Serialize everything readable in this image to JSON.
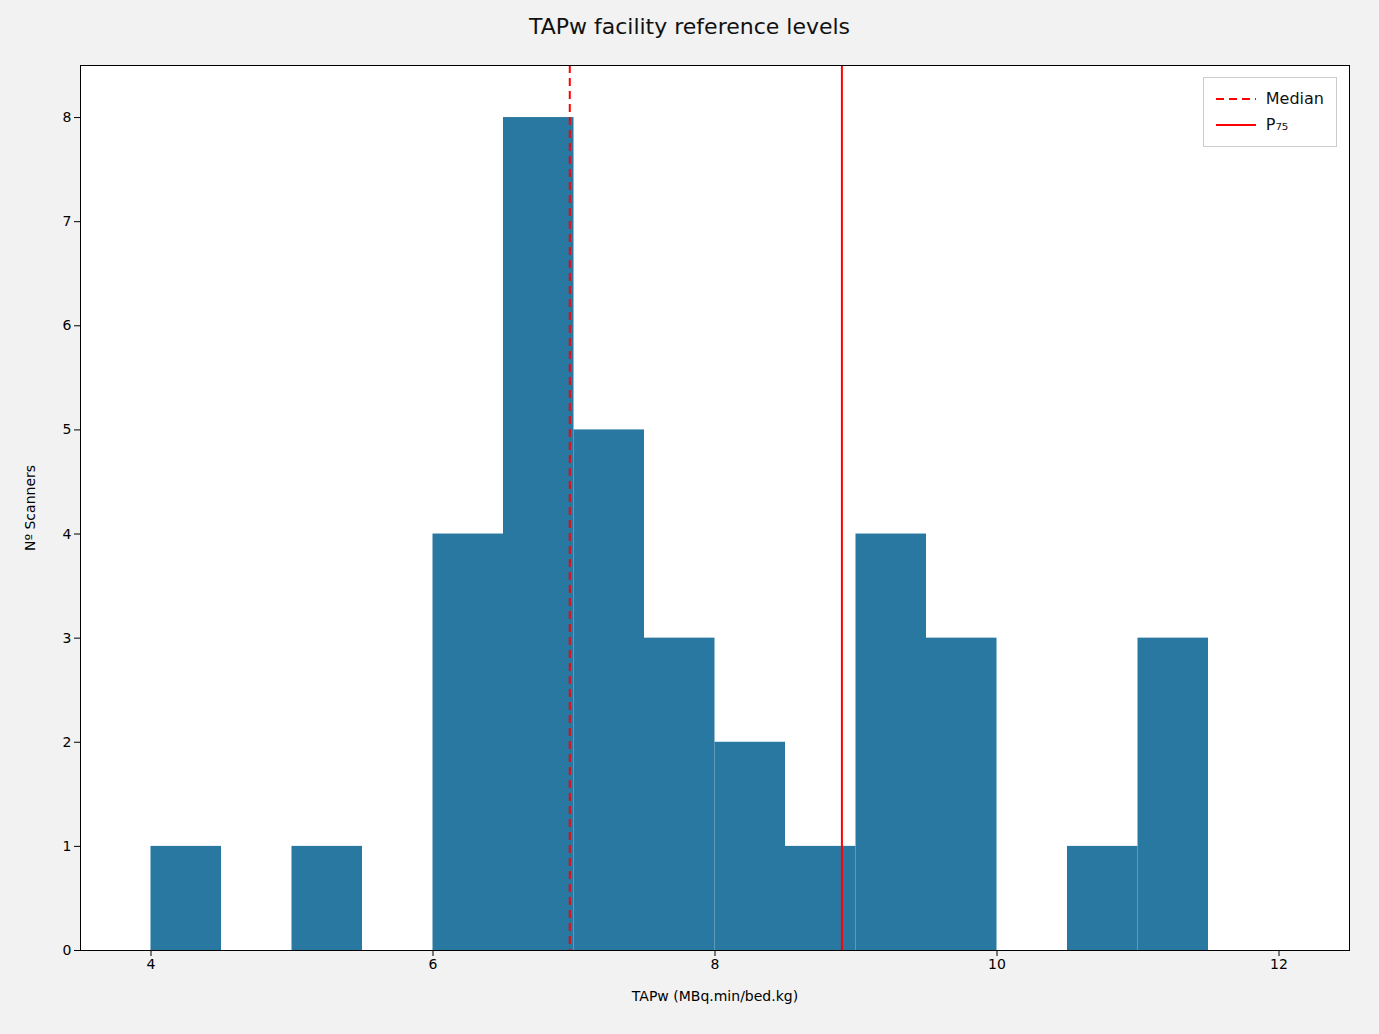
{
  "chart_data": {
    "type": "histogram",
    "title": "TAPw facility reference levels",
    "xlabel": "TAPw (MBq.min/bed.kg)",
    "ylabel": "Nº Scanners",
    "bins": [
      4.0,
      4.5,
      5.0,
      5.5,
      6.0,
      6.5,
      7.0,
      7.5,
      8.0,
      8.5,
      9.0,
      9.5,
      10.0,
      10.5,
      11.0,
      11.5,
      12.0,
      12.5
    ],
    "values": [
      1,
      0,
      1,
      0,
      4,
      8,
      5,
      3,
      2,
      1,
      4,
      3,
      0,
      1,
      3,
      0,
      0
    ],
    "color": "#2878A2",
    "xlim": [
      3.5,
      12.5
    ],
    "ylim": [
      0,
      8.5
    ],
    "xticks": [
      4,
      6,
      8,
      10,
      12
    ],
    "yticks": [
      0,
      1,
      2,
      3,
      4,
      5,
      6,
      7,
      8
    ],
    "grid": false,
    "legend": "upper right",
    "vlines": [
      {
        "name": "Median",
        "value": 6.97,
        "color": "red",
        "line_style": "dashed"
      },
      {
        "name": "P₇₅",
        "value": 8.9,
        "color": "red",
        "line_style": "solid"
      }
    ]
  }
}
